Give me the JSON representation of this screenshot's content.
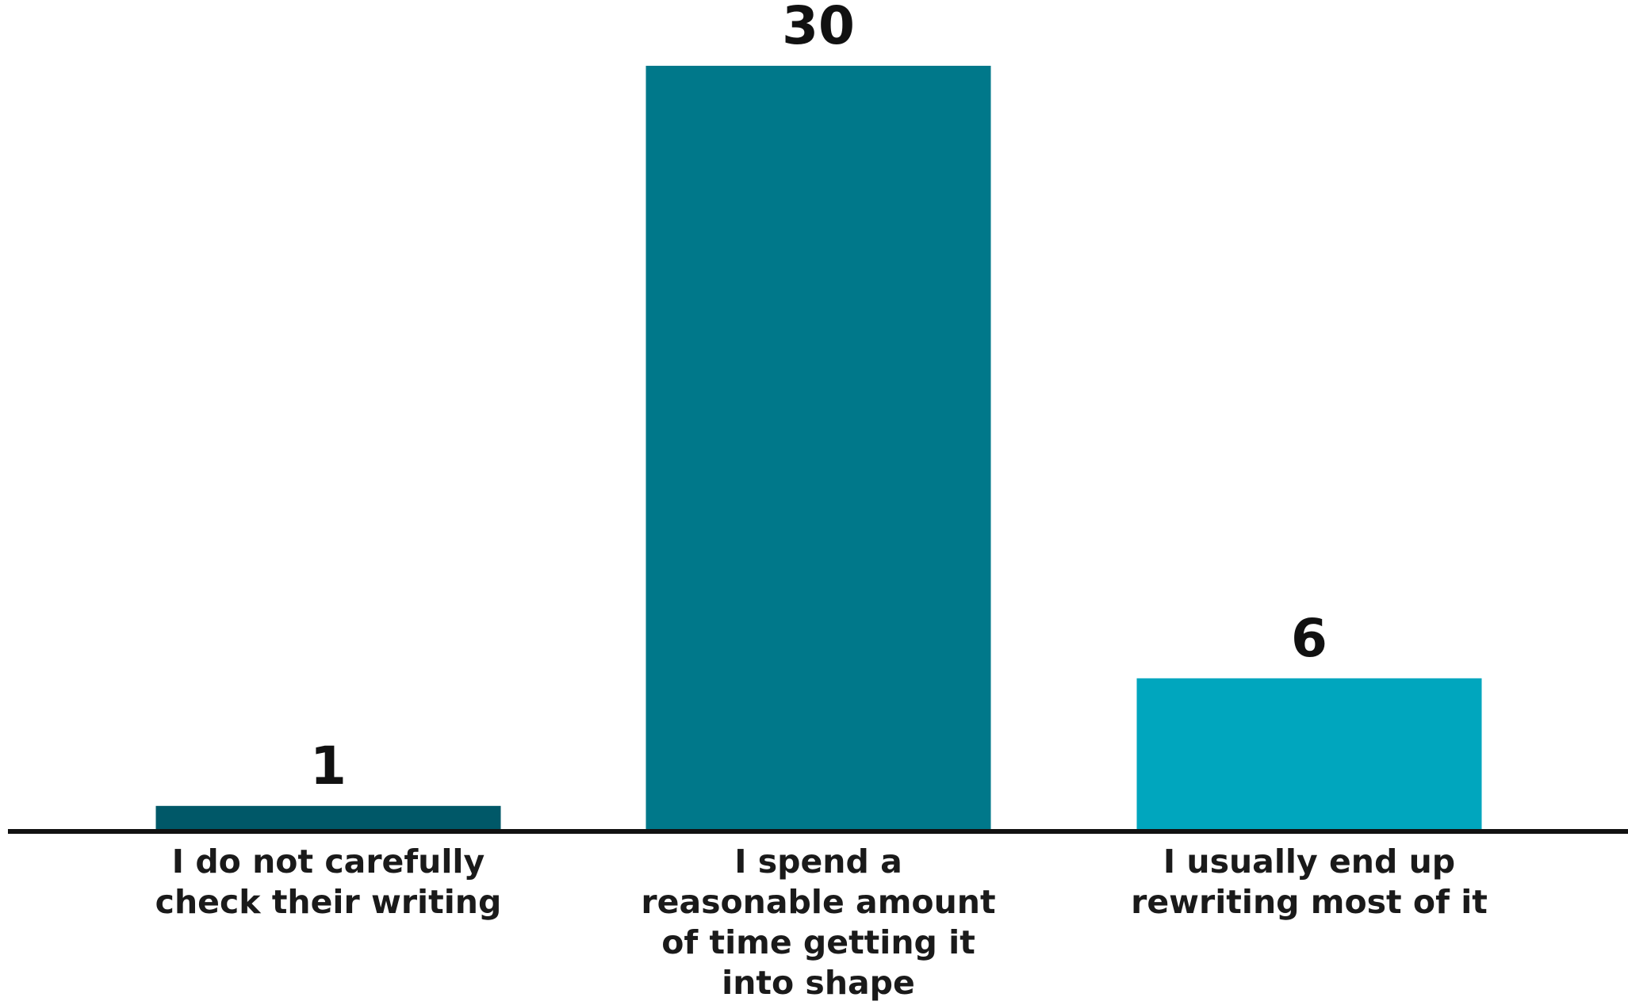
{
  "chart_data": {
    "type": "bar",
    "title": "",
    "xlabel": "",
    "ylabel": "",
    "categories": [
      [
        "I do not carefully",
        "check their writing"
      ],
      [
        "I spend a",
        "reasonable amount",
        "of time getting it",
        "into shape"
      ],
      [
        "I usually end up",
        "rewriting most of it"
      ]
    ],
    "values": [
      1,
      30,
      6
    ],
    "value_labels": [
      "1",
      "30",
      "6"
    ],
    "colors": [
      "#005868",
      "#00788a",
      "#00a6be"
    ],
    "ylim": [
      0,
      30
    ],
    "grid": false,
    "legend": "none",
    "axis_color": "#111111"
  }
}
